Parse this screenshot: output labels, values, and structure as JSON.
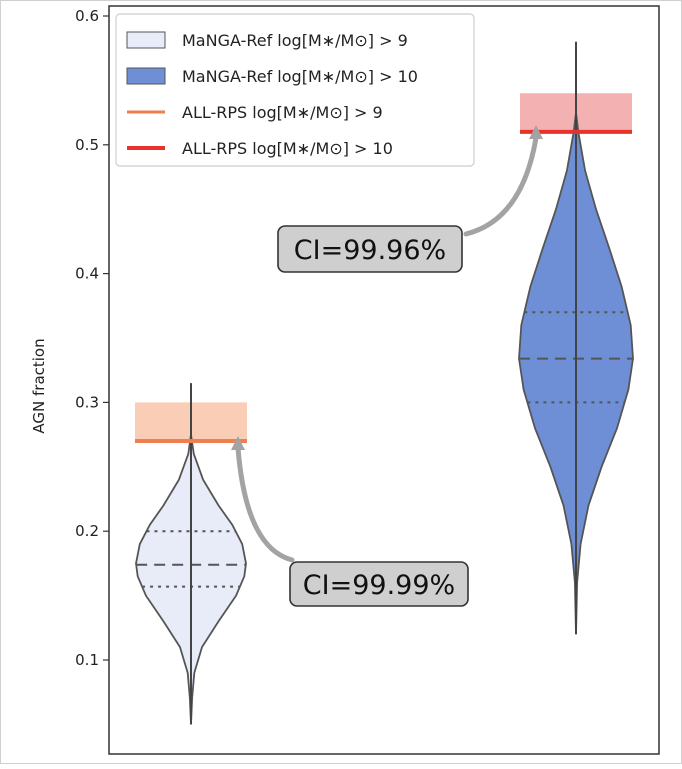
{
  "chart_data": {
    "type": "violin",
    "ylabel": "AGN fraction",
    "ylim": [
      0.05,
      0.6
    ],
    "yticks": [
      "0.1",
      "0.2",
      "0.3",
      "0.4",
      "0.5",
      "0.6"
    ],
    "grid": false,
    "legend_position": "upper-left",
    "legend": [
      {
        "label": "MaNGA-Ref log[M∗/M⊙] > 9",
        "kind": "patch",
        "color": "#e8ecf8"
      },
      {
        "label": "MaNGA-Ref log[M∗/M⊙] > 10",
        "kind": "patch",
        "color": "#6e8fd6"
      },
      {
        "label": "ALL-RPS log[M∗/M⊙] > 9",
        "kind": "line",
        "color": "#f07f4f"
      },
      {
        "label": "ALL-RPS log[M∗/M⊙] > 10",
        "kind": "line",
        "color": "#e8332c"
      }
    ],
    "violins": [
      {
        "name": "MaNGA-Ref log[M∗/M⊙] > 9",
        "min": 0.05,
        "max": 0.315,
        "q1": 0.157,
        "median": 0.174,
        "q3": 0.2,
        "profile": [
          [
            0.05,
            0.0
          ],
          [
            0.07,
            0.02
          ],
          [
            0.09,
            0.06
          ],
          [
            0.11,
            0.2
          ],
          [
            0.13,
            0.5
          ],
          [
            0.15,
            0.82
          ],
          [
            0.165,
            0.97
          ],
          [
            0.175,
            1.0
          ],
          [
            0.19,
            0.93
          ],
          [
            0.205,
            0.75
          ],
          [
            0.22,
            0.5
          ],
          [
            0.24,
            0.22
          ],
          [
            0.26,
            0.05
          ],
          [
            0.275,
            0.0
          ]
        ],
        "fill": "#e8ecf8",
        "reference": {
          "value": 0.27,
          "band": [
            0.27,
            0.3
          ],
          "line_color": "#f07f4f",
          "band_color": "#f9c8ae"
        },
        "annotation": "CI=99.99%"
      },
      {
        "name": "MaNGA-Ref log[M∗/M⊙] > 10",
        "min": 0.12,
        "max": 0.58,
        "q1": 0.3,
        "median": 0.334,
        "q3": 0.37,
        "profile": [
          [
            0.12,
            0.0
          ],
          [
            0.16,
            0.02
          ],
          [
            0.19,
            0.08
          ],
          [
            0.22,
            0.22
          ],
          [
            0.25,
            0.45
          ],
          [
            0.28,
            0.72
          ],
          [
            0.31,
            0.92
          ],
          [
            0.334,
            1.0
          ],
          [
            0.36,
            0.96
          ],
          [
            0.39,
            0.8
          ],
          [
            0.42,
            0.58
          ],
          [
            0.45,
            0.35
          ],
          [
            0.48,
            0.16
          ],
          [
            0.51,
            0.04
          ],
          [
            0.525,
            0.0
          ]
        ],
        "fill": "#6e8fd6",
        "reference": {
          "value": 0.51,
          "band": [
            0.51,
            0.54
          ],
          "line_color": "#e8332c",
          "band_color": "#f2a9a9"
        },
        "annotation": "CI=99.96%"
      }
    ]
  }
}
